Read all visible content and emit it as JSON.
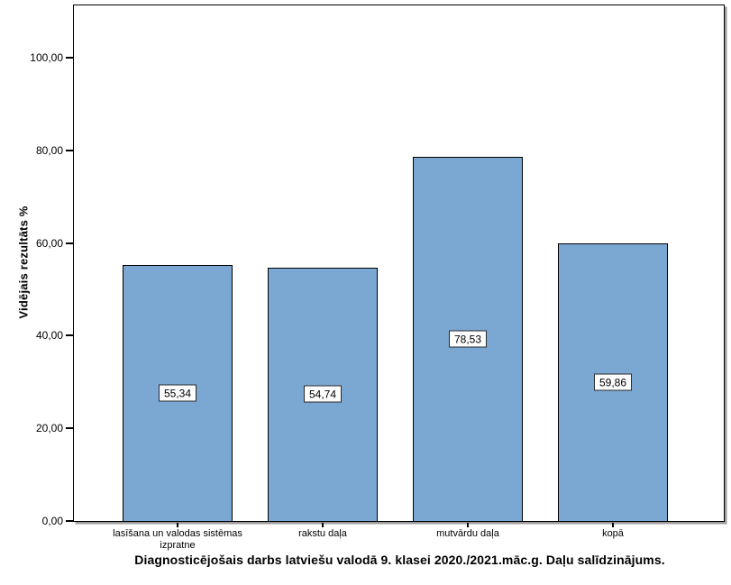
{
  "chart_data": {
    "type": "bar",
    "title": "Diagnosticējošais darbs latviešu valodā 9. klasei 2020./2021.māc.g. Daļu salīdzinājums.",
    "ylabel": "Vidējais rezultāts %",
    "xlabel": "",
    "categories": [
      "lasīšana un valodas sistēmas izpratne",
      "rakstu daļa",
      "mutvārdu daļa",
      "kopā"
    ],
    "values": [
      55.34,
      54.74,
      78.53,
      59.86
    ],
    "value_labels": [
      "55,34",
      "54,74",
      "78,53",
      "59,86"
    ],
    "yticks": [
      0,
      20,
      40,
      60,
      80,
      100
    ],
    "ytick_labels": [
      "0,00",
      "20,00",
      "40,00",
      "60,00",
      "80,00",
      "100,00"
    ],
    "ylim": [
      0,
      111.3
    ],
    "grid": false,
    "legend": "none",
    "bar_color": "#7BA7D3",
    "bar_border_color": "#000000",
    "frame_color": "#000000",
    "frame_shadow_color": "#9c9c9c",
    "background_color": "#ffffff"
  }
}
